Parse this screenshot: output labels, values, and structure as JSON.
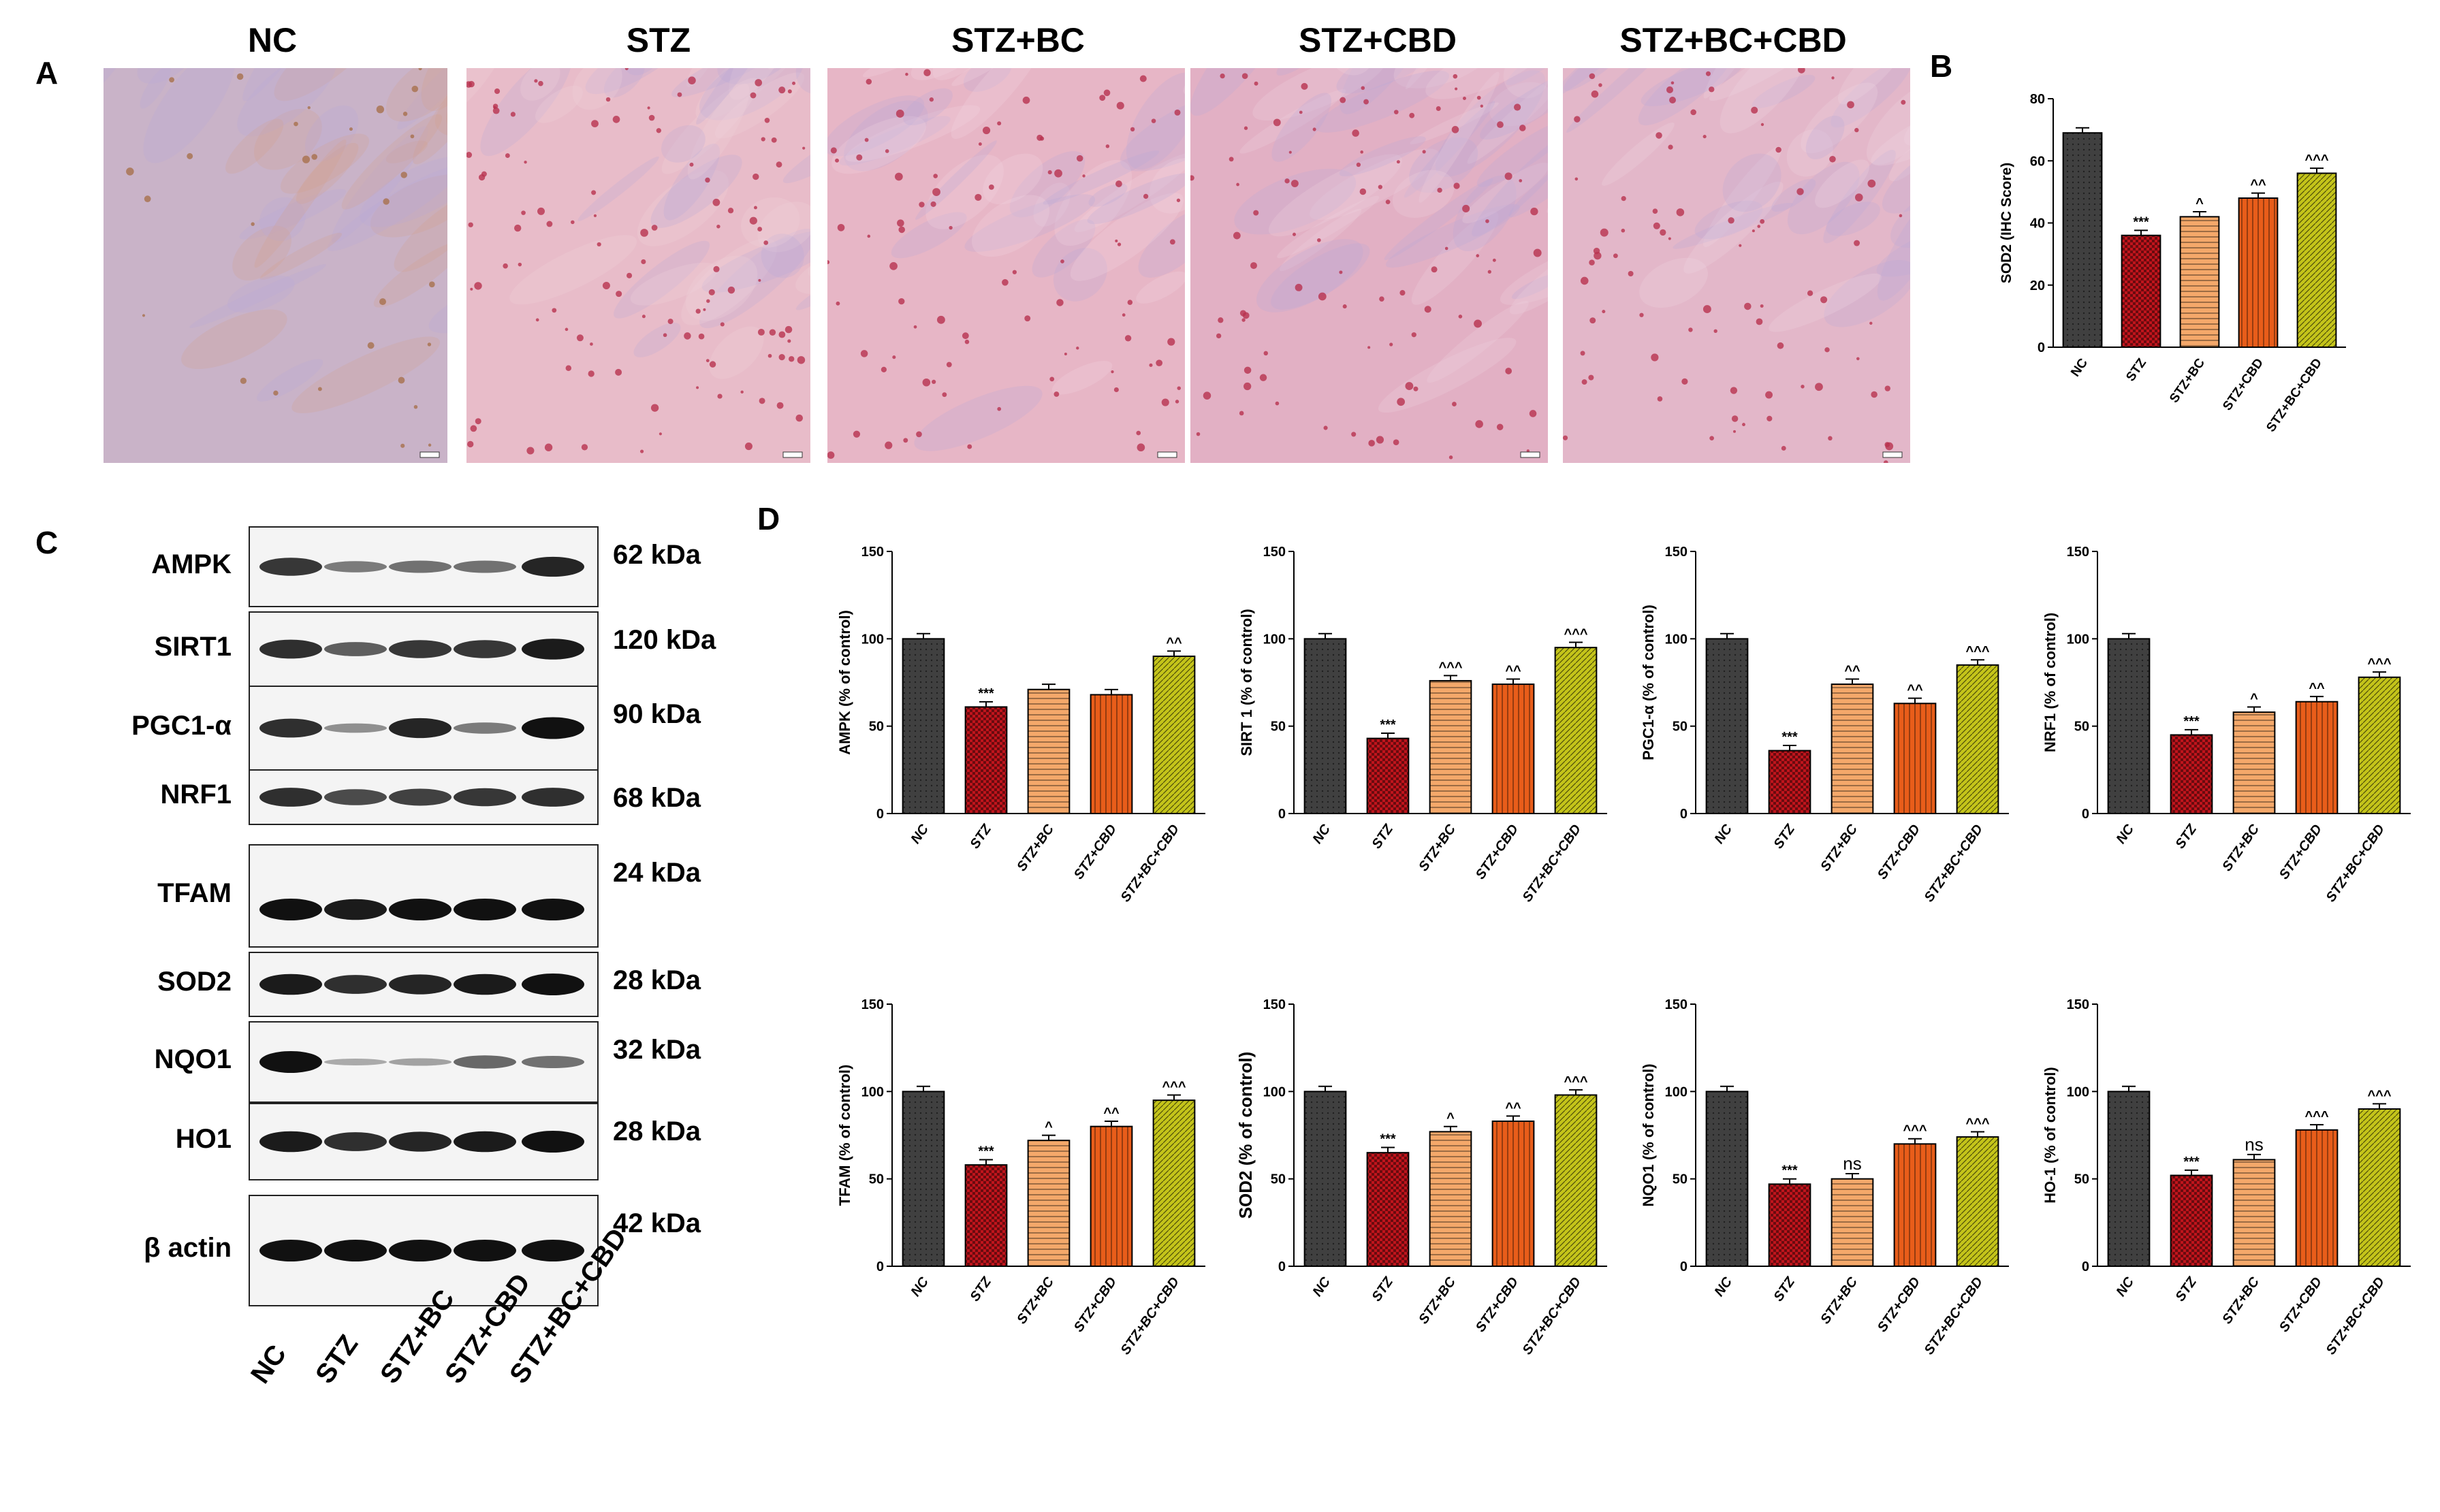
{
  "panels": {
    "A": "A",
    "B": "B",
    "C": "C",
    "D": "D"
  },
  "groups": [
    "NC",
    "STZ",
    "STZ+BC",
    "STZ+CBD",
    "STZ+BC+CBD"
  ],
  "colors": {
    "NC": "#404040",
    "STZ": "#c0141c",
    "STZ+BC": "#f4a86a",
    "STZ+CBD": "#e85d1a",
    "STZ+BC+CBD": "#c4c41a"
  },
  "blot": {
    "rows": [
      {
        "name": "AMPK",
        "kda": "62 kDa"
      },
      {
        "name": "SIRT1",
        "kda": "120 kDa"
      },
      {
        "name": "PGC1-α",
        "kda": "90 kDa"
      },
      {
        "name": "NRF1",
        "kda": "68 kDa"
      },
      {
        "name": "TFAM",
        "kda": "24 kDa"
      },
      {
        "name": "SOD2",
        "kda": "28 kDa"
      },
      {
        "name": "NQO1",
        "kda": "32 kDa"
      },
      {
        "name": "HO1",
        "kda": "28 kDa"
      },
      {
        "name": "β actin",
        "kda": "42 kDa"
      }
    ],
    "lanes": [
      "NC",
      "STZ",
      "STZ+BC",
      "STZ+CBD",
      "STZ+BC+CBD"
    ]
  },
  "chart_data": [
    {
      "type": "bar",
      "ylabel": "SOD2 (IHC Score)",
      "ylim": [
        0,
        80
      ],
      "yticks": [
        0,
        20,
        40,
        60,
        80
      ],
      "categories": [
        "NC",
        "STZ",
        "STZ+BC",
        "STZ+CBD",
        "STZ+BC+CBD"
      ],
      "values": [
        69,
        36,
        42,
        48,
        56
      ],
      "annotations": [
        "",
        "***",
        "^",
        "^^",
        "^^^"
      ]
    },
    {
      "type": "bar",
      "ylabel": "AMPK (% of control)",
      "ylim": [
        0,
        150
      ],
      "yticks": [
        0,
        50,
        100,
        150
      ],
      "categories": [
        "NC",
        "STZ",
        "STZ+BC",
        "STZ+CBD",
        "STZ+BC+CBD"
      ],
      "values": [
        100,
        61,
        71,
        68,
        90
      ],
      "annotations": [
        "",
        "***",
        "",
        "",
        "^^"
      ]
    },
    {
      "type": "bar",
      "ylabel": "SIRT 1 (% of control)",
      "ylim": [
        0,
        150
      ],
      "yticks": [
        0,
        50,
        100,
        150
      ],
      "categories": [
        "NC",
        "STZ",
        "STZ+BC",
        "STZ+CBD",
        "STZ+BC+CBD"
      ],
      "values": [
        100,
        43,
        76,
        74,
        95
      ],
      "annotations": [
        "",
        "***",
        "^^^",
        "^^",
        "^^^"
      ]
    },
    {
      "type": "bar",
      "ylabel": "PGC1-α (% of control)",
      "ylim": [
        0,
        150
      ],
      "yticks": [
        0,
        50,
        100,
        150
      ],
      "categories": [
        "NC",
        "STZ",
        "STZ+BC",
        "STZ+CBD",
        "STZ+BC+CBD"
      ],
      "values": [
        100,
        36,
        74,
        63,
        85
      ],
      "annotations": [
        "",
        "***",
        "^^",
        "^^",
        "^^^"
      ]
    },
    {
      "type": "bar",
      "ylabel": "NRF1 (% of control)",
      "ylim": [
        0,
        150
      ],
      "yticks": [
        0,
        50,
        100,
        150
      ],
      "categories": [
        "NC",
        "STZ",
        "STZ+BC",
        "STZ+CBD",
        "STZ+BC+CBD"
      ],
      "values": [
        100,
        45,
        58,
        64,
        78
      ],
      "annotations": [
        "",
        "***",
        "^",
        "^^",
        "^^^"
      ]
    },
    {
      "type": "bar",
      "ylabel": "TFAM (% of control)",
      "ylim": [
        0,
        150
      ],
      "yticks": [
        0,
        50,
        100,
        150
      ],
      "categories": [
        "NC",
        "STZ",
        "STZ+BC",
        "STZ+CBD",
        "STZ+BC+CBD"
      ],
      "values": [
        100,
        58,
        72,
        80,
        95
      ],
      "annotations": [
        "",
        "***",
        "^",
        "^^",
        "^^^"
      ]
    },
    {
      "type": "bar",
      "ylabel": "SOD2 (% of control)",
      "ylim": [
        0,
        150
      ],
      "yticks": [
        0,
        50,
        100,
        150
      ],
      "categories": [
        "NC",
        "STZ",
        "STZ+BC",
        "STZ+CBD",
        "STZ+BC+CBD"
      ],
      "values": [
        100,
        65,
        77,
        83,
        98
      ],
      "annotations": [
        "",
        "***",
        "^",
        "^^",
        "^^^"
      ]
    },
    {
      "type": "bar",
      "ylabel": "NQO1 (% of control)",
      "ylim": [
        0,
        150
      ],
      "yticks": [
        0,
        50,
        100,
        150
      ],
      "categories": [
        "NC",
        "STZ",
        "STZ+BC",
        "STZ+CBD",
        "STZ+BC+CBD"
      ],
      "values": [
        100,
        47,
        50,
        70,
        74
      ],
      "annotations": [
        "",
        "***",
        "ns",
        "^^^",
        "^^^"
      ]
    },
    {
      "type": "bar",
      "ylabel": "HO-1 (% of control)",
      "ylim": [
        0,
        150
      ],
      "yticks": [
        0,
        50,
        100,
        150
      ],
      "categories": [
        "NC",
        "STZ",
        "STZ+BC",
        "STZ+CBD",
        "STZ+BC+CBD"
      ],
      "values": [
        100,
        52,
        61,
        78,
        90
      ],
      "annotations": [
        "",
        "***",
        "ns",
        "^^^",
        "^^^"
      ]
    }
  ]
}
